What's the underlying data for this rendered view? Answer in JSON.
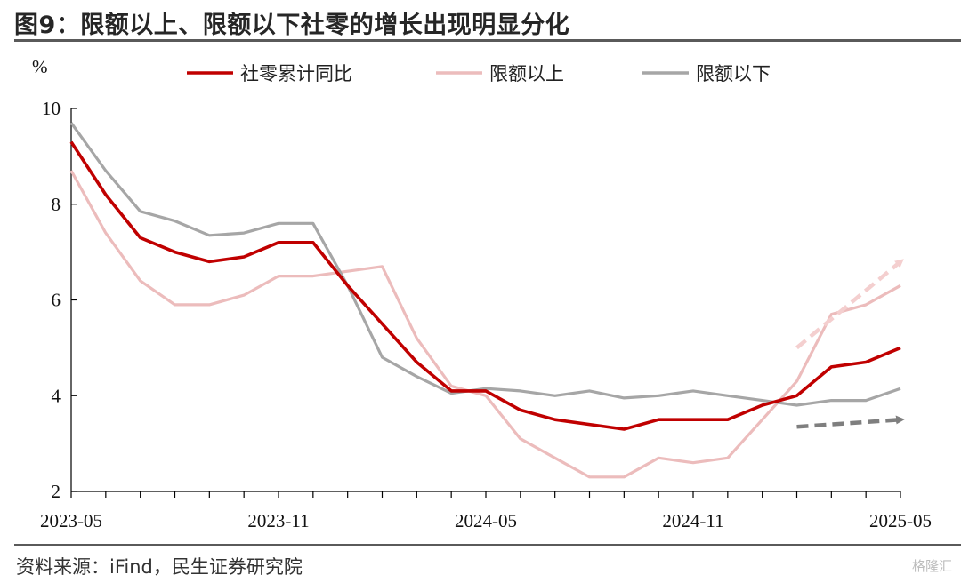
{
  "title": "图9：限额以上、限额以下社零的增长出现明显分化",
  "source": "资料来源：iFind，民生证券研究院",
  "watermark": "格隆汇",
  "chart_data": {
    "type": "line",
    "ylabel": "%",
    "ylim": [
      2,
      10
    ],
    "yticks": [
      "2",
      "4",
      "6",
      "8",
      "10"
    ],
    "xtick_labels": [
      "2023-05",
      "2023-11",
      "2024-05",
      "2024-11",
      "2025-05"
    ],
    "x": [
      "2023-05",
      "2023-06",
      "2023-07",
      "2023-08",
      "2023-09",
      "2023-10",
      "2023-11",
      "2023-12",
      "2024-01",
      "2024-02",
      "2024-03",
      "2024-04",
      "2024-05",
      "2024-06",
      "2024-07",
      "2024-08",
      "2024-09",
      "2024-10",
      "2024-11",
      "2024-12",
      "2025-01",
      "2025-02",
      "2025-03",
      "2025-04",
      "2025-05"
    ],
    "grid": false,
    "legend_position": "top",
    "series": [
      {
        "name": "社零累计同比",
        "color": "#c00000",
        "values": [
          9.3,
          8.2,
          7.3,
          7.0,
          6.8,
          6.9,
          7.2,
          7.2,
          6.3,
          5.5,
          4.7,
          4.1,
          4.1,
          3.7,
          3.5,
          3.4,
          3.3,
          3.5,
          3.5,
          3.5,
          3.8,
          4.0,
          4.6,
          4.7,
          5.0
        ]
      },
      {
        "name": "限额以上",
        "color": "#ecbcbc",
        "values": [
          8.7,
          7.4,
          6.4,
          5.9,
          5.9,
          6.1,
          6.5,
          6.5,
          6.6,
          6.7,
          5.2,
          4.2,
          4.0,
          3.1,
          2.7,
          2.3,
          2.3,
          2.7,
          2.6,
          2.7,
          3.5,
          4.3,
          5.7,
          5.9,
          6.3
        ]
      },
      {
        "name": "限额以下",
        "color": "#a6a6a6",
        "values": [
          9.7,
          8.7,
          7.85,
          7.65,
          7.35,
          7.4,
          7.6,
          7.6,
          6.3,
          4.8,
          4.4,
          4.05,
          4.15,
          4.1,
          4.0,
          4.1,
          3.95,
          4.0,
          4.1,
          4.0,
          3.9,
          3.8,
          3.9,
          3.9,
          4.15
        ]
      }
    ],
    "annotations": [
      {
        "type": "arrow",
        "style": "dashed",
        "color": "#f4cfcf",
        "from": [
          21,
          5.0
        ],
        "to": [
          24,
          6.8
        ]
      },
      {
        "type": "arrow",
        "style": "dashed",
        "color": "#7f7f7f",
        "from": [
          21,
          3.35
        ],
        "to": [
          24,
          3.5
        ]
      }
    ]
  }
}
